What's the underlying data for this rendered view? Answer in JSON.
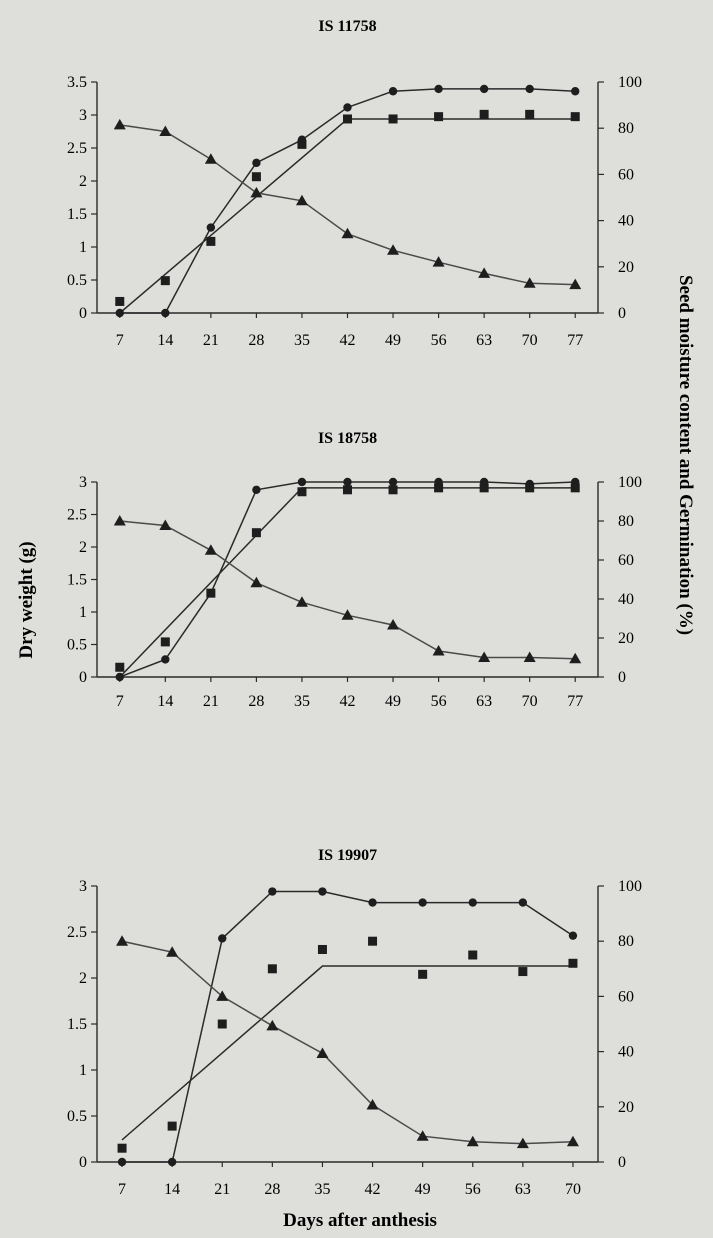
{
  "left_axis_label": "Dry weight (g)",
  "right_axis_label": "Seed moisture content and Germination (%)",
  "x_axis_label": "Days after anthesis",
  "colors": {
    "line": "#2a2a2a",
    "marker": "#1e1e1e",
    "moisture_line": "#4a4a4a"
  },
  "chart_data": [
    {
      "type": "line",
      "title": "IS 11758",
      "categories": [
        "7",
        "14",
        "21",
        "28",
        "35",
        "42",
        "49",
        "56",
        "63",
        "70",
        "77"
      ],
      "x": [
        7,
        14,
        21,
        28,
        35,
        42,
        49,
        56,
        63,
        70,
        77
      ],
      "left_ticks": [
        "0",
        "0.5",
        "1",
        "1.5",
        "2",
        "2.5",
        "3",
        "3.5"
      ],
      "right_ticks": [
        "0",
        "20",
        "40",
        "60",
        "80",
        "100"
      ],
      "ylim_left": [
        0,
        3.5
      ],
      "ylim_right": [
        0,
        100
      ],
      "series": [
        {
          "marker": "circle",
          "axis": "right",
          "values": [
            0,
            0,
            37,
            65,
            75,
            89,
            96,
            97,
            97,
            97,
            96
          ]
        },
        {
          "marker": "square",
          "axis": "right",
          "values": [
            5,
            14,
            31,
            59,
            73,
            84,
            84,
            85,
            86,
            86,
            85
          ]
        },
        {
          "marker": "triangle",
          "axis": "left",
          "values": [
            2.85,
            2.75,
            2.33,
            1.82,
            1.7,
            1.2,
            0.95,
            0.77,
            0.6,
            0.45,
            0.43
          ]
        }
      ],
      "fitted_line": {
        "axis": "right",
        "points": [
          [
            7,
            0
          ],
          [
            42,
            84
          ],
          [
            77,
            84
          ]
        ]
      }
    },
    {
      "type": "line",
      "title": "IS 18758",
      "categories": [
        "7",
        "14",
        "21",
        "28",
        "35",
        "42",
        "49",
        "56",
        "63",
        "70",
        "77"
      ],
      "x": [
        7,
        14,
        21,
        28,
        35,
        42,
        49,
        56,
        63,
        70,
        77
      ],
      "left_ticks": [
        "0",
        "0.5",
        "1",
        "1.5",
        "2",
        "2.5",
        "3"
      ],
      "right_ticks": [
        "0",
        "20",
        "40",
        "60",
        "80",
        "100"
      ],
      "ylim_left": [
        0,
        3
      ],
      "ylim_right": [
        0,
        100
      ],
      "series": [
        {
          "marker": "circle",
          "axis": "right",
          "values": [
            0,
            9,
            43,
            96,
            100,
            100,
            100,
            100,
            100,
            99,
            100
          ]
        },
        {
          "marker": "square",
          "axis": "right",
          "values": [
            5,
            18,
            43,
            74,
            95,
            96,
            96,
            97,
            97,
            97,
            97
          ]
        },
        {
          "marker": "triangle",
          "axis": "left",
          "values": [
            2.4,
            2.33,
            1.95,
            1.45,
            1.15,
            0.95,
            0.8,
            0.4,
            0.3,
            0.3,
            0.28
          ]
        }
      ],
      "fitted_line": {
        "axis": "right",
        "points": [
          [
            7,
            0
          ],
          [
            35,
            97
          ],
          [
            77,
            97
          ]
        ]
      }
    },
    {
      "type": "line",
      "title": "IS 19907",
      "categories": [
        "7",
        "14",
        "21",
        "28",
        "35",
        "42",
        "49",
        "56",
        "63",
        "70"
      ],
      "x": [
        7,
        14,
        21,
        28,
        35,
        42,
        49,
        56,
        63,
        70
      ],
      "left_ticks": [
        "0",
        "0.5",
        "1",
        "1.5",
        "2",
        "2.5",
        "3"
      ],
      "right_ticks": [
        "0",
        "20",
        "40",
        "60",
        "80",
        "100"
      ],
      "ylim_left": [
        0,
        3
      ],
      "ylim_right": [
        0,
        100
      ],
      "series": [
        {
          "marker": "circle",
          "axis": "right",
          "values": [
            0,
            0,
            81,
            98,
            98,
            94,
            94,
            94,
            94,
            82
          ]
        },
        {
          "marker": "square",
          "axis": "right",
          "values": [
            5,
            13,
            50,
            70,
            77,
            80,
            68,
            75,
            69,
            72
          ]
        },
        {
          "marker": "triangle",
          "axis": "left",
          "values": [
            2.4,
            2.28,
            1.8,
            1.48,
            1.18,
            0.62,
            0.28,
            0.22,
            0.2,
            0.22
          ]
        }
      ],
      "fitted_line": {
        "axis": "right",
        "points": [
          [
            7,
            8
          ],
          [
            35,
            71
          ],
          [
            70,
            71
          ]
        ]
      }
    }
  ]
}
